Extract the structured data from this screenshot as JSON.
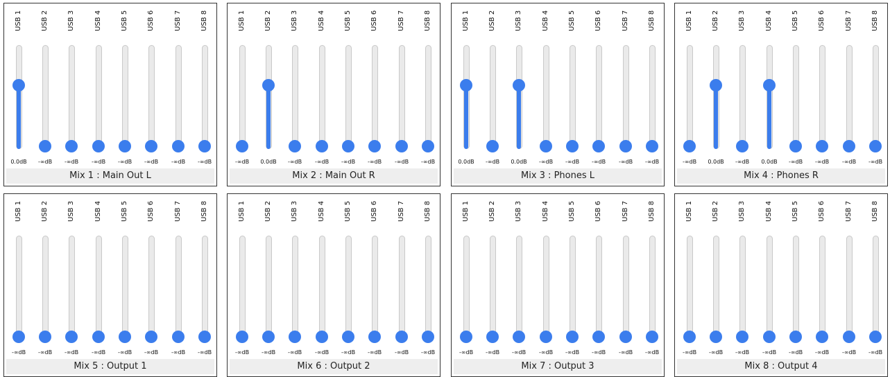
{
  "accent_color": "#3b7ded",
  "mixes": [
    {
      "title": "Mix 1 : Main Out L",
      "channels": [
        {
          "label": "USB 1",
          "db": "0.0dB",
          "level": 0.78
        },
        {
          "label": "USB 2",
          "db": "-∞dB",
          "level": 0
        },
        {
          "label": "USB 3",
          "db": "-∞dB",
          "level": 0
        },
        {
          "label": "USB 4",
          "db": "-∞dB",
          "level": 0
        },
        {
          "label": "USB 5",
          "db": "-∞dB",
          "level": 0
        },
        {
          "label": "USB 6",
          "db": "-∞dB",
          "level": 0
        },
        {
          "label": "USB 7",
          "db": "-∞dB",
          "level": 0
        },
        {
          "label": "USB 8",
          "db": "-∞dB",
          "level": 0
        }
      ]
    },
    {
      "title": "Mix 2 : Main Out R",
      "channels": [
        {
          "label": "USB 1",
          "db": "-∞dB",
          "level": 0
        },
        {
          "label": "USB 2",
          "db": "0.0dB",
          "level": 0.78
        },
        {
          "label": "USB 3",
          "db": "-∞dB",
          "level": 0
        },
        {
          "label": "USB 4",
          "db": "-∞dB",
          "level": 0
        },
        {
          "label": "USB 5",
          "db": "-∞dB",
          "level": 0
        },
        {
          "label": "USB 6",
          "db": "-∞dB",
          "level": 0
        },
        {
          "label": "USB 7",
          "db": "-∞dB",
          "level": 0
        },
        {
          "label": "USB 8",
          "db": "-∞dB",
          "level": 0
        }
      ]
    },
    {
      "title": "Mix 3 : Phones L",
      "channels": [
        {
          "label": "USB 1",
          "db": "0.0dB",
          "level": 0.78
        },
        {
          "label": "USB 2",
          "db": "-∞dB",
          "level": 0
        },
        {
          "label": "USB 3",
          "db": "0.0dB",
          "level": 0.78
        },
        {
          "label": "USB 4",
          "db": "-∞dB",
          "level": 0
        },
        {
          "label": "USB 5",
          "db": "-∞dB",
          "level": 0
        },
        {
          "label": "USB 6",
          "db": "-∞dB",
          "level": 0
        },
        {
          "label": "USB 7",
          "db": "-∞dB",
          "level": 0
        },
        {
          "label": "USB 8",
          "db": "-∞dB",
          "level": 0
        }
      ]
    },
    {
      "title": "Mix 4 : Phones R",
      "channels": [
        {
          "label": "USB 1",
          "db": "-∞dB",
          "level": 0
        },
        {
          "label": "USB 2",
          "db": "0.0dB",
          "level": 0.78
        },
        {
          "label": "USB 3",
          "db": "-∞dB",
          "level": 0
        },
        {
          "label": "USB 4",
          "db": "0.0dB",
          "level": 0.78
        },
        {
          "label": "USB 5",
          "db": "-∞dB",
          "level": 0
        },
        {
          "label": "USB 6",
          "db": "-∞dB",
          "level": 0
        },
        {
          "label": "USB 7",
          "db": "-∞dB",
          "level": 0
        },
        {
          "label": "USB 8",
          "db": "-∞dB",
          "level": 0
        }
      ]
    },
    {
      "title": "Mix 5 : Output 1",
      "channels": [
        {
          "label": "USB 1",
          "db": "-∞dB",
          "level": 0
        },
        {
          "label": "USB 2",
          "db": "-∞dB",
          "level": 0
        },
        {
          "label": "USB 3",
          "db": "-∞dB",
          "level": 0
        },
        {
          "label": "USB 4",
          "db": "-∞dB",
          "level": 0
        },
        {
          "label": "USB 5",
          "db": "-∞dB",
          "level": 0
        },
        {
          "label": "USB 6",
          "db": "-∞dB",
          "level": 0
        },
        {
          "label": "USB 7",
          "db": "-∞dB",
          "level": 0
        },
        {
          "label": "USB 8",
          "db": "-∞dB",
          "level": 0
        }
      ]
    },
    {
      "title": "Mix 6 : Output 2",
      "channels": [
        {
          "label": "USB 1",
          "db": "-∞dB",
          "level": 0
        },
        {
          "label": "USB 2",
          "db": "-∞dB",
          "level": 0
        },
        {
          "label": "USB 3",
          "db": "-∞dB",
          "level": 0
        },
        {
          "label": "USB 4",
          "db": "-∞dB",
          "level": 0
        },
        {
          "label": "USB 5",
          "db": "-∞dB",
          "level": 0
        },
        {
          "label": "USB 6",
          "db": "-∞dB",
          "level": 0
        },
        {
          "label": "USB 7",
          "db": "-∞dB",
          "level": 0
        },
        {
          "label": "USB 8",
          "db": "-∞dB",
          "level": 0
        }
      ]
    },
    {
      "title": "Mix 7 : Output 3",
      "channels": [
        {
          "label": "USB 1",
          "db": "-∞dB",
          "level": 0
        },
        {
          "label": "USB 2",
          "db": "-∞dB",
          "level": 0
        },
        {
          "label": "USB 3",
          "db": "-∞dB",
          "level": 0
        },
        {
          "label": "USB 4",
          "db": "-∞dB",
          "level": 0
        },
        {
          "label": "USB 5",
          "db": "-∞dB",
          "level": 0
        },
        {
          "label": "USB 6",
          "db": "-∞dB",
          "level": 0
        },
        {
          "label": "USB 7",
          "db": "-∞dB",
          "level": 0
        },
        {
          "label": "USB 8",
          "db": "-∞dB",
          "level": 0
        }
      ]
    },
    {
      "title": "Mix 8 : Output 4",
      "channels": [
        {
          "label": "USB 1",
          "db": "-∞dB",
          "level": 0
        },
        {
          "label": "USB 2",
          "db": "-∞dB",
          "level": 0
        },
        {
          "label": "USB 3",
          "db": "-∞dB",
          "level": 0
        },
        {
          "label": "USB 4",
          "db": "-∞dB",
          "level": 0
        },
        {
          "label": "USB 5",
          "db": "-∞dB",
          "level": 0
        },
        {
          "label": "USB 6",
          "db": "-∞dB",
          "level": 0
        },
        {
          "label": "USB 7",
          "db": "-∞dB",
          "level": 0
        },
        {
          "label": "USB 8",
          "db": "-∞dB",
          "level": 0
        }
      ]
    }
  ]
}
